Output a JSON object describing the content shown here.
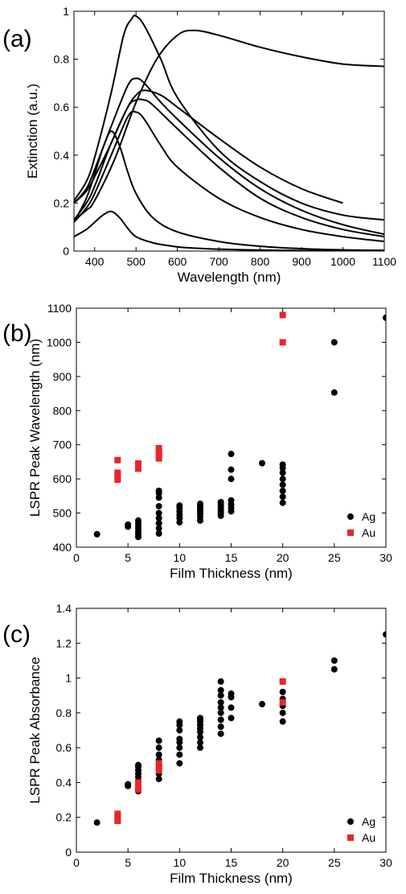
{
  "chart_data": [
    {
      "panel": "(a)",
      "type": "line",
      "xlabel": "Wavelength (nm)",
      "ylabel": "Extinction (a.u.)",
      "xlim": [
        350,
        1100
      ],
      "ylim": [
        0,
        1
      ],
      "xticks": [
        400,
        500,
        600,
        700,
        800,
        900,
        1000,
        1100
      ],
      "yticks": [
        0,
        0.2,
        0.4,
        0.6,
        0.8,
        1
      ],
      "ytick_labels": [
        "0",
        "0.2",
        "0.4",
        "0.6",
        "0.8",
        "1"
      ],
      "grid": false,
      "series_color": "#000000",
      "series": [
        {
          "x": [
            350,
            380,
            400,
            420,
            440,
            460,
            480,
            500,
            540,
            580,
            620,
            700,
            800,
            900,
            1000,
            1100
          ],
          "y": [
            0.06,
            0.09,
            0.12,
            0.15,
            0.165,
            0.14,
            0.095,
            0.06,
            0.035,
            0.022,
            0.014,
            0.008,
            0.004,
            0.002,
            0.001,
            0.0
          ]
        },
        {
          "x": [
            350,
            380,
            400,
            420,
            440,
            460,
            480,
            500,
            540,
            600,
            700,
            800,
            900,
            1000,
            1100
          ],
          "y": [
            0.12,
            0.22,
            0.32,
            0.43,
            0.5,
            0.44,
            0.33,
            0.24,
            0.14,
            0.08,
            0.04,
            0.02,
            0.01,
            0.005,
            0.003
          ]
        },
        {
          "x": [
            350,
            380,
            400,
            440,
            480,
            500,
            520,
            560,
            600,
            700,
            800,
            900,
            1000,
            1100
          ],
          "y": [
            0.12,
            0.18,
            0.24,
            0.4,
            0.56,
            0.58,
            0.55,
            0.44,
            0.35,
            0.22,
            0.14,
            0.09,
            0.06,
            0.04
          ]
        },
        {
          "x": [
            350,
            380,
            400,
            440,
            480,
            500,
            520,
            540,
            600,
            700,
            800,
            900,
            1000,
            1100
          ],
          "y": [
            0.2,
            0.25,
            0.31,
            0.45,
            0.6,
            0.63,
            0.63,
            0.61,
            0.51,
            0.35,
            0.22,
            0.14,
            0.09,
            0.06
          ]
        },
        {
          "x": [
            350,
            380,
            400,
            440,
            480,
            500,
            520,
            560,
            600,
            700,
            800,
            900,
            1000,
            1100
          ],
          "y": [
            0.2,
            0.26,
            0.34,
            0.52,
            0.69,
            0.72,
            0.7,
            0.62,
            0.55,
            0.39,
            0.26,
            0.17,
            0.11,
            0.07
          ]
        },
        {
          "x": [
            350,
            380,
            400,
            440,
            470,
            490,
            500,
            520,
            560,
            600,
            700,
            800,
            900,
            1000,
            1100
          ],
          "y": [
            0.21,
            0.29,
            0.39,
            0.66,
            0.9,
            0.97,
            0.98,
            0.94,
            0.8,
            0.64,
            0.42,
            0.29,
            0.2,
            0.15,
            0.13
          ]
        },
        {
          "x": [
            350,
            380,
            400,
            450,
            500,
            550,
            600,
            640,
            700,
            800,
            900,
            1000,
            1100
          ],
          "y": [
            0.13,
            0.17,
            0.21,
            0.39,
            0.62,
            0.8,
            0.9,
            0.92,
            0.9,
            0.85,
            0.81,
            0.78,
            0.77
          ]
        },
        {
          "x": [
            350,
            380,
            400,
            440,
            480,
            500,
            520,
            560,
            600,
            700,
            800,
            900,
            1000
          ],
          "y": [
            0.13,
            0.2,
            0.27,
            0.45,
            0.6,
            0.65,
            0.67,
            0.65,
            0.6,
            0.47,
            0.35,
            0.26,
            0.2
          ]
        }
      ]
    },
    {
      "panel": "(b)",
      "type": "scatter",
      "xlabel": "Film Thickness (nm)",
      "ylabel": "LSPR Peak Wavelength (nm)",
      "xlim": [
        0,
        30
      ],
      "ylim": [
        400,
        1100
      ],
      "xticks": [
        0,
        5,
        10,
        15,
        20,
        25,
        30
      ],
      "yticks": [
        400,
        500,
        600,
        700,
        800,
        900,
        1000,
        1100
      ],
      "ytick_labels": [
        "400",
        "500",
        "600",
        "700",
        "800",
        "900",
        "1000",
        "1100"
      ],
      "grid": false,
      "legend_position": "bottom-right",
      "series": [
        {
          "name": "Ag",
          "marker": "circle",
          "color": "#000000",
          "x": [
            2,
            5,
            5,
            6,
            6,
            6,
            6,
            6,
            6,
            6,
            8,
            8,
            8,
            8,
            8,
            8,
            8,
            8,
            8,
            10,
            10,
            10,
            10,
            10,
            10,
            12,
            12,
            12,
            12,
            12,
            12,
            12,
            14,
            14,
            14,
            14,
            14,
            14,
            14,
            15,
            15,
            15,
            15,
            15,
            15,
            15,
            18,
            20,
            20,
            20,
            20,
            20,
            20,
            20,
            20,
            25,
            25,
            30
          ],
          "y": [
            438,
            460,
            466,
            430,
            438,
            446,
            455,
            462,
            470,
            478,
            440,
            455,
            470,
            485,
            500,
            520,
            545,
            558,
            565,
            473,
            485,
            495,
            505,
            515,
            522,
            478,
            488,
            497,
            505,
            512,
            520,
            527,
            492,
            500,
            508,
            514,
            520,
            526,
            532,
            505,
            515,
            525,
            537,
            600,
            627,
            673,
            646,
            530,
            548,
            565,
            583,
            600,
            618,
            632,
            642,
            853,
            1000,
            1072
          ]
        },
        {
          "name": "Au",
          "marker": "square",
          "color": "#e8262a",
          "x": [
            4,
            4,
            4,
            4,
            6,
            6,
            6,
            8,
            8,
            8,
            8,
            20,
            20
          ],
          "y": [
            598,
            607,
            618,
            655,
            630,
            637,
            645,
            660,
            670,
            680,
            690,
            1000,
            1080
          ]
        }
      ]
    },
    {
      "panel": "(c)",
      "type": "scatter",
      "xlabel": "Film Thickness (nm)",
      "ylabel": "LSPR Peak Absorbance",
      "xlim": [
        0,
        30
      ],
      "ylim": [
        0,
        1.4
      ],
      "xticks": [
        0,
        5,
        10,
        15,
        20,
        25,
        30
      ],
      "yticks": [
        0,
        0.2,
        0.4,
        0.6,
        0.8,
        1,
        1.2,
        1.4
      ],
      "ytick_labels": [
        "0",
        "0.2",
        "0.4",
        "0.6",
        "0.8",
        "1",
        "1.2",
        "1.4"
      ],
      "grid": false,
      "legend_position": "bottom-right",
      "series": [
        {
          "name": "Ag",
          "marker": "circle",
          "color": "#000000",
          "x": [
            2,
            5,
            5,
            6,
            6,
            6,
            6,
            6,
            6,
            6,
            6,
            8,
            8,
            8,
            8,
            8,
            8,
            8,
            10,
            10,
            10,
            10,
            10,
            10,
            10,
            10,
            12,
            12,
            12,
            12,
            12,
            12,
            12,
            12,
            12,
            14,
            14,
            14,
            14,
            14,
            14,
            14,
            14,
            14,
            15,
            15,
            15,
            15,
            18,
            20,
            20,
            20,
            20,
            20,
            20,
            25,
            25,
            30
          ],
          "y": [
            0.17,
            0.39,
            0.38,
            0.35,
            0.37,
            0.4,
            0.43,
            0.45,
            0.47,
            0.49,
            0.5,
            0.42,
            0.45,
            0.48,
            0.53,
            0.56,
            0.6,
            0.64,
            0.51,
            0.56,
            0.6,
            0.63,
            0.65,
            0.7,
            0.73,
            0.75,
            0.6,
            0.63,
            0.66,
            0.69,
            0.71,
            0.73,
            0.75,
            0.76,
            0.77,
            0.68,
            0.72,
            0.76,
            0.8,
            0.83,
            0.86,
            0.9,
            0.93,
            0.98,
            0.77,
            0.83,
            0.89,
            0.91,
            0.85,
            0.75,
            0.8,
            0.84,
            0.88,
            0.92,
            0.98,
            1.05,
            1.1,
            1.25
          ]
        },
        {
          "name": "Au",
          "marker": "square",
          "color": "#e8262a",
          "x": [
            4,
            4,
            4,
            6,
            6,
            6,
            8,
            8,
            8,
            20,
            20
          ],
          "y": [
            0.18,
            0.2,
            0.22,
            0.36,
            0.38,
            0.4,
            0.47,
            0.49,
            0.51,
            0.86,
            0.98
          ]
        }
      ]
    }
  ]
}
